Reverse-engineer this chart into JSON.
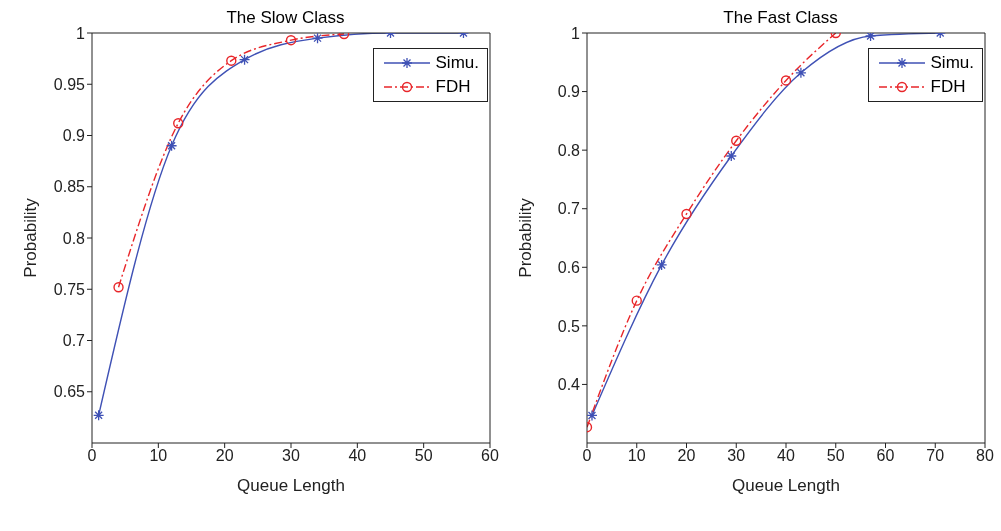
{
  "chart_data": [
    {
      "type": "line",
      "title": "The Slow Class",
      "xlabel": "Queue Length",
      "ylabel": "Probability",
      "xlim": [
        0,
        60
      ],
      "xticks": [
        0,
        10,
        20,
        30,
        40,
        50,
        60
      ],
      "ylim": [
        0.6,
        1
      ],
      "yticks": [
        0.65,
        0.7,
        0.75,
        0.8,
        0.85,
        0.9,
        0.95,
        1
      ],
      "grid": false,
      "legend": "top right",
      "series": [
        {
          "name": "Simu.",
          "color": "#3f51b5",
          "marker": "cross",
          "line_style": "solid",
          "x": [
            1,
            12,
            23,
            34,
            45,
            56
          ],
          "values": [
            0.627,
            0.89,
            0.974,
            0.995,
            1,
            1
          ]
        },
        {
          "name": "FDH",
          "color": "#e8262a",
          "marker": "circle",
          "line_style": "dashed",
          "x": [
            4,
            13,
            21,
            30,
            38
          ],
          "values": [
            0.752,
            0.912,
            0.973,
            0.993,
            0.999
          ]
        }
      ]
    },
    {
      "type": "line",
      "title": "The Fast Class",
      "xlabel": "Queue Length",
      "ylabel": "Probability",
      "xlim": [
        0,
        80
      ],
      "xticks": [
        0,
        10,
        20,
        30,
        40,
        50,
        60,
        70,
        80
      ],
      "ylim": [
        0.3,
        1
      ],
      "yticks": [
        0.4,
        0.5,
        0.6,
        0.7,
        0.8,
        0.9,
        1
      ],
      "grid": false,
      "legend": "top right",
      "series": [
        {
          "name": "Simu.",
          "color": "#3f51b5",
          "marker": "cross",
          "line_style": "solid",
          "x": [
            1,
            15,
            29,
            43,
            57,
            71
          ],
          "values": [
            0.347,
            0.604,
            0.79,
            0.932,
            0.995,
            1
          ]
        },
        {
          "name": "FDH",
          "color": "#e8262a",
          "marker": "circle",
          "line_style": "dashed",
          "x": [
            0,
            10,
            20,
            30,
            40,
            50
          ],
          "values": [
            0.327,
            0.543,
            0.691,
            0.816,
            0.919,
            1
          ]
        }
      ]
    }
  ]
}
